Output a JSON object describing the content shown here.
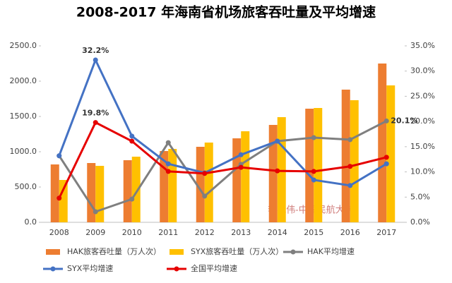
{
  "chart_data": {
    "type": "bar",
    "title": "2008-2017 年海南省机场旅客吞吐量及平均增速",
    "watermark": "李艳伟-中国民航大学",
    "categories": [
      "2008",
      "2009",
      "2010",
      "2011",
      "2012",
      "2013",
      "2014",
      "2015",
      "2016",
      "2017"
    ],
    "series": [
      {
        "name": "HAK旅客吞吐量（万人次）",
        "type": "bar",
        "color": "#ed7d31",
        "values": [
          820,
          840,
          880,
          1010,
          1070,
          1190,
          1380,
          1610,
          1880,
          2250
        ]
      },
      {
        "name": "SYX旅客吞吐量（万人次）",
        "type": "bar",
        "color": "#ffc000",
        "values": [
          600,
          800,
          930,
          1040,
          1130,
          1290,
          1490,
          1620,
          1730,
          1940
        ]
      },
      {
        "name": "HAK平均增速",
        "type": "line",
        "axis": "y2",
        "color": "#7f7f7f",
        "values": [
          13.2,
          2.1,
          4.6,
          15.8,
          5.2,
          11.5,
          16.1,
          16.8,
          16.4,
          20.1
        ],
        "value_labels": [
          null,
          null,
          null,
          null,
          null,
          null,
          null,
          null,
          null,
          "20.1%"
        ]
      },
      {
        "name": "SYX平均增速",
        "type": "line",
        "axis": "y2",
        "color": "#4472c4",
        "values": [
          13.2,
          32.2,
          17.1,
          11.6,
          9.8,
          13.4,
          16.1,
          8.4,
          7.3,
          11.6
        ],
        "value_labels": [
          null,
          "32.2%",
          null,
          null,
          null,
          null,
          null,
          null,
          null,
          null
        ]
      },
      {
        "name": "全国平均增速",
        "type": "line",
        "axis": "y2",
        "color": "#e60000",
        "values": [
          4.8,
          19.8,
          16.1,
          10.1,
          9.7,
          10.9,
          10.2,
          10.1,
          11.1,
          12.9
        ],
        "value_labels": [
          null,
          "19.8%",
          null,
          null,
          null,
          null,
          null,
          null,
          null,
          null
        ]
      }
    ],
    "ylim": [
      0,
      2500
    ],
    "yticks": [
      {
        "value": 0,
        "label": "0.0"
      },
      {
        "value": 500,
        "label": "500.0"
      },
      {
        "value": 1000,
        "label": "1000.0"
      },
      {
        "value": 1500,
        "label": "1500.0"
      },
      {
        "value": 2000,
        "label": "2000.0"
      },
      {
        "value": 2500,
        "label": "2500.0"
      }
    ],
    "y2lim": [
      0,
      35
    ],
    "y2ticks": [
      {
        "value": 0,
        "label": "0.0%"
      },
      {
        "value": 5,
        "label": "5.0%"
      },
      {
        "value": 10,
        "label": "10.0%"
      },
      {
        "value": 15,
        "label": "15.0%"
      },
      {
        "value": 20,
        "label": "20.0%"
      },
      {
        "value": 25,
        "label": "25.0%"
      },
      {
        "value": 30,
        "label": "30.0%"
      },
      {
        "value": 35,
        "label": "35.0%"
      }
    ],
    "grid": false
  }
}
